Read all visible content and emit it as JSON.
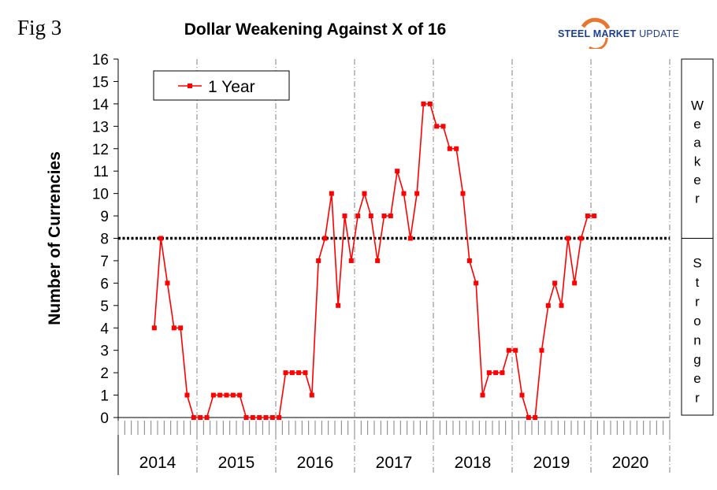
{
  "figure_label": "Fig 3",
  "logo": {
    "name": "steel-market-update-logo",
    "text_steel": "STEEL",
    "text_market": " MARKET",
    "text_update": " UPDATE",
    "colors": {
      "arc": "#e8762c",
      "text": "#1d3f8f"
    }
  },
  "chart_data": {
    "type": "line",
    "title": "Dollar Weakening Against X of 16",
    "ylabel": "Number of Currencies",
    "xlabel": "",
    "ylim": [
      0,
      16
    ],
    "yticks": [
      0,
      1,
      2,
      3,
      4,
      5,
      6,
      7,
      8,
      9,
      10,
      11,
      12,
      13,
      14,
      15,
      16
    ],
    "x_groups": [
      "2014",
      "2015",
      "2016",
      "2017",
      "2018",
      "2019",
      "2020"
    ],
    "months_per_group": 12,
    "reference_line": {
      "value": 8,
      "style": "dotted"
    },
    "side_labels": {
      "upper": "Weaker",
      "lower": "Stronger"
    },
    "legend": {
      "position": "top-left"
    },
    "series": [
      {
        "name": "1 Year",
        "color": "#ff0000",
        "marker": "square",
        "start_index": 5,
        "values": [
          4,
          8,
          6,
          4,
          4,
          1,
          0,
          0,
          0,
          1,
          1,
          1,
          1,
          1,
          0,
          0,
          0,
          0,
          0,
          0,
          2,
          2,
          2,
          2,
          1,
          7,
          8,
          10,
          5,
          9,
          7,
          9,
          10,
          9,
          7,
          9,
          9,
          11,
          10,
          8,
          10,
          14,
          14,
          13,
          13,
          12,
          12,
          10,
          7,
          6,
          1,
          2,
          2,
          2,
          3,
          3,
          1,
          0,
          0,
          3,
          5,
          6,
          5,
          8,
          6,
          8,
          9,
          9
        ]
      }
    ]
  }
}
